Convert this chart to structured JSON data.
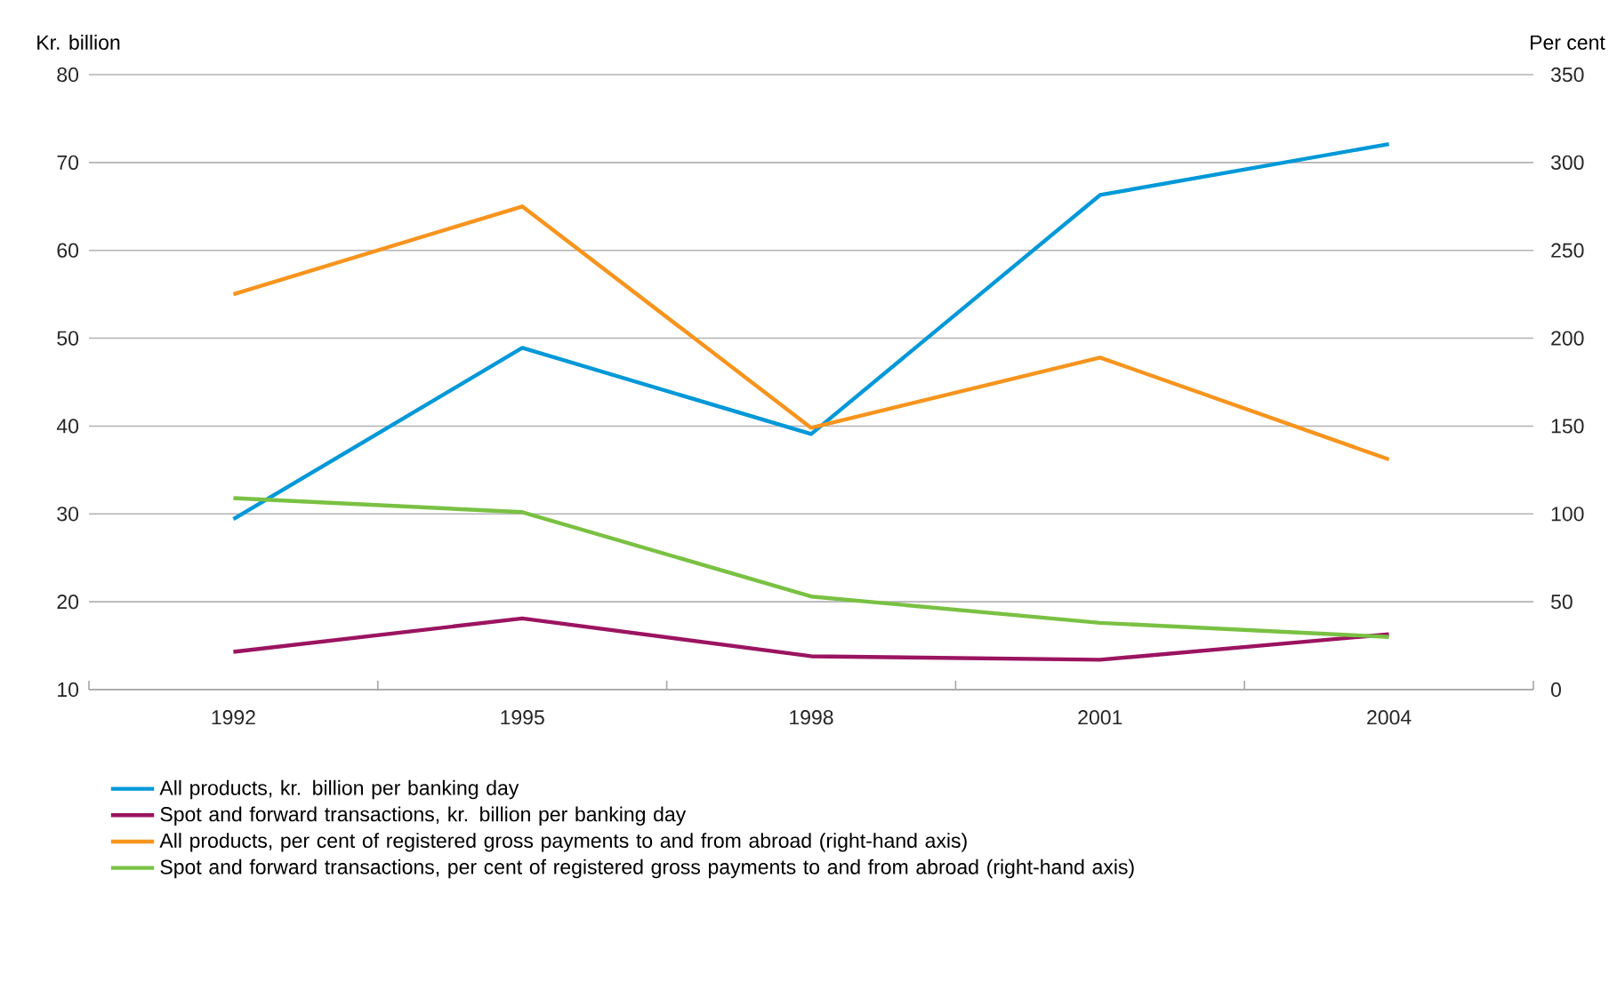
{
  "chart_data": {
    "type": "line",
    "categories": [
      "1992",
      "1995",
      "1998",
      "2001",
      "2004"
    ],
    "ylabel": "Kr. billion",
    "y2label": "Per cent",
    "ylim": [
      10,
      80
    ],
    "yticks": [
      10,
      20,
      30,
      40,
      50,
      60,
      70,
      80
    ],
    "y2lim": [
      0,
      350
    ],
    "y2ticks": [
      0,
      50,
      100,
      150,
      200,
      250,
      300,
      350
    ],
    "grid": "y",
    "legend": "bottom",
    "series": [
      {
        "name": "All products, kr. billion per banking day",
        "color": "#0098d8",
        "values": [
          29.4,
          48.9,
          39.1,
          66.3,
          72.1
        ]
      },
      {
        "name": "Spot and forward transactions, kr. billion per banking day",
        "color": "#9b1460",
        "values": [
          14.3,
          18.1,
          13.8,
          13.4,
          16.3
        ]
      },
      {
        "name": "All products, per cent of registered gross payments to and from abroad (right-hand axis)",
        "color": "#f7941d",
        "axis": "y2",
        "values": [
          225,
          275,
          149,
          189,
          131
        ]
      },
      {
        "name": "Spot and forward transactions, per cent of registered gross payments to and from abroad (right-hand axis)",
        "color": "#7ac143",
        "axis": "y2",
        "values": [
          109,
          101,
          53,
          38,
          30
        ]
      }
    ]
  }
}
